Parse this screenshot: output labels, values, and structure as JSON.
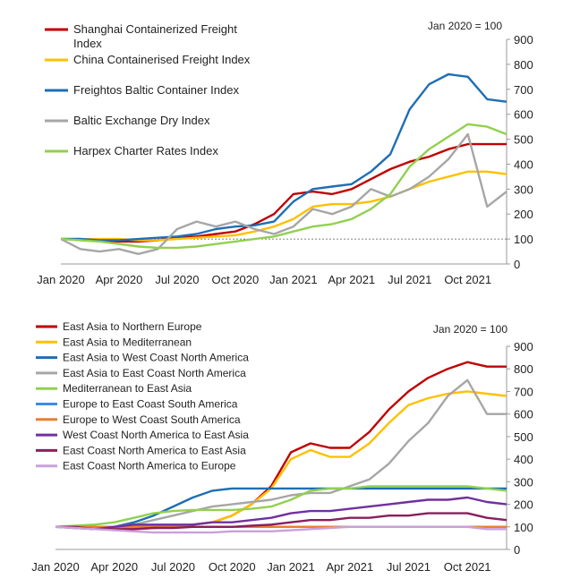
{
  "chart_data": [
    {
      "type": "line",
      "note": "Jan 2020 = 100",
      "x_ticks": [
        "Jan 2020",
        "Apr 2020",
        "Jul 2020",
        "Oct 2020",
        "Jan 2021",
        "Apr 2021",
        "Jul 2021",
        "Oct 2021"
      ],
      "x_range": [
        "2020-01",
        "2021-12"
      ],
      "ylim": [
        0,
        900
      ],
      "y_ticks": [
        0,
        100,
        200,
        300,
        400,
        500,
        600,
        700,
        800,
        900
      ],
      "y_axis_side": "right",
      "reference_line": 100,
      "legend_position": "top-left",
      "x": [
        "2020-01",
        "2020-02",
        "2020-03",
        "2020-04",
        "2020-05",
        "2020-06",
        "2020-07",
        "2020-08",
        "2020-09",
        "2020-10",
        "2020-11",
        "2020-12",
        "2021-01",
        "2021-02",
        "2021-03",
        "2021-04",
        "2021-05",
        "2021-06",
        "2021-07",
        "2021-08",
        "2021-09",
        "2021-10",
        "2021-11",
        "2021-12"
      ],
      "series": [
        {
          "name": "Shanghai Containerized Freight Index",
          "color": "#C00000",
          "values": [
            100,
            100,
            95,
            90,
            90,
            95,
            105,
            110,
            120,
            130,
            160,
            200,
            280,
            290,
            280,
            300,
            340,
            380,
            410,
            430,
            460,
            480,
            480,
            480
          ]
        },
        {
          "name": "China Containerised Freight Index",
          "color": "#FFC000",
          "values": [
            100,
            100,
            100,
            100,
            95,
            95,
            100,
            105,
            110,
            115,
            130,
            150,
            180,
            230,
            240,
            240,
            250,
            270,
            300,
            330,
            350,
            370,
            370,
            360
          ]
        },
        {
          "name": "Freightos Baltic Container Index",
          "color": "#1F6EB4",
          "values": [
            100,
            100,
            95,
            95,
            100,
            105,
            110,
            120,
            140,
            150,
            155,
            170,
            250,
            300,
            310,
            320,
            370,
            440,
            620,
            720,
            760,
            750,
            660,
            650
          ]
        },
        {
          "name": "Baltic Exchange Dry Index",
          "color": "#A6A6A6",
          "values": [
            100,
            60,
            50,
            60,
            40,
            60,
            140,
            170,
            150,
            170,
            140,
            120,
            150,
            220,
            200,
            230,
            300,
            270,
            300,
            350,
            420,
            520,
            230,
            290
          ]
        },
        {
          "name": "Harpex Charter Rates Index",
          "color": "#92D050",
          "values": [
            100,
            95,
            90,
            80,
            70,
            65,
            65,
            70,
            80,
            90,
            100,
            110,
            130,
            150,
            160,
            180,
            220,
            280,
            390,
            460,
            510,
            560,
            550,
            520
          ]
        }
      ]
    },
    {
      "type": "line",
      "note": "Jan 2020 = 100",
      "x_ticks": [
        "Jan 2020",
        "Apr 2020",
        "Jul 2020",
        "Oct 2020",
        "Jan 2021",
        "Apr 2021",
        "Jul 2021",
        "Oct 2021"
      ],
      "x_range": [
        "2020-01",
        "2021-12"
      ],
      "ylim": [
        0,
        900
      ],
      "y_ticks": [
        0,
        100,
        200,
        300,
        400,
        500,
        600,
        700,
        800,
        900
      ],
      "y_axis_side": "right",
      "reference_line": 100,
      "legend_position": "top-left",
      "x": [
        "2020-01",
        "2020-02",
        "2020-03",
        "2020-04",
        "2020-05",
        "2020-06",
        "2020-07",
        "2020-08",
        "2020-09",
        "2020-10",
        "2020-11",
        "2020-12",
        "2021-01",
        "2021-02",
        "2021-03",
        "2021-04",
        "2021-05",
        "2021-06",
        "2021-07",
        "2021-08",
        "2021-09",
        "2021-10",
        "2021-11",
        "2021-12"
      ],
      "series": [
        {
          "name": "East Asia to Northern Europe",
          "color": "#C00000",
          "values": [
            100,
            100,
            95,
            90,
            90,
            95,
            100,
            110,
            120,
            150,
            200,
            280,
            430,
            470,
            450,
            450,
            520,
            620,
            700,
            760,
            800,
            830,
            810,
            810
          ]
        },
        {
          "name": "East Asia to Mediterranean",
          "color": "#FFC000",
          "values": [
            100,
            100,
            95,
            90,
            90,
            95,
            100,
            110,
            120,
            150,
            200,
            270,
            400,
            440,
            410,
            410,
            470,
            560,
            640,
            670,
            690,
            700,
            690,
            680
          ]
        },
        {
          "name": "East Asia to West Coast North America",
          "color": "#1F6EB4",
          "values": [
            100,
            100,
            95,
            100,
            120,
            150,
            190,
            230,
            260,
            270,
            270,
            270,
            270,
            270,
            270,
            270,
            270,
            270,
            270,
            270,
            270,
            270,
            270,
            270
          ]
        },
        {
          "name": "East Asia to East Coast North America",
          "color": "#A6A6A6",
          "values": [
            100,
            100,
            95,
            100,
            110,
            130,
            150,
            170,
            190,
            200,
            210,
            220,
            240,
            250,
            250,
            280,
            310,
            380,
            480,
            560,
            680,
            750,
            600,
            600
          ]
        },
        {
          "name": "Mediterranean to East Asia",
          "color": "#92D050",
          "values": [
            100,
            105,
            110,
            120,
            140,
            160,
            170,
            175,
            175,
            175,
            180,
            190,
            220,
            260,
            270,
            270,
            280,
            280,
            280,
            280,
            280,
            280,
            270,
            260
          ]
        },
        {
          "name": "Europe to East Coast South America",
          "color": "#3C8CE7",
          "values": [
            100,
            100,
            100,
            100,
            100,
            100,
            100,
            100,
            100,
            100,
            100,
            100,
            100,
            100,
            100,
            100,
            100,
            100,
            100,
            100,
            100,
            100,
            100,
            100
          ]
        },
        {
          "name": "Europe to West Coast South America",
          "color": "#ED7D31",
          "values": [
            100,
            100,
            100,
            100,
            100,
            100,
            100,
            100,
            100,
            100,
            100,
            100,
            100,
            100,
            100,
            100,
            100,
            100,
            100,
            100,
            100,
            100,
            100,
            100
          ]
        },
        {
          "name": "West Coast North America to East Asia",
          "color": "#7030A0",
          "values": [
            100,
            95,
            90,
            100,
            110,
            110,
            110,
            110,
            120,
            120,
            130,
            140,
            160,
            170,
            170,
            180,
            190,
            200,
            210,
            220,
            220,
            230,
            210,
            200
          ]
        },
        {
          "name": "East Coast North America to East Asia",
          "color": "#8B1E5A",
          "values": [
            100,
            100,
            90,
            90,
            90,
            95,
            95,
            100,
            100,
            100,
            105,
            110,
            120,
            130,
            130,
            140,
            140,
            150,
            150,
            160,
            160,
            160,
            140,
            130
          ]
        },
        {
          "name": "East Coast North America to Europe",
          "color": "#C9A0DC",
          "values": [
            100,
            95,
            90,
            85,
            80,
            75,
            75,
            75,
            75,
            80,
            80,
            80,
            85,
            90,
            95,
            100,
            100,
            100,
            100,
            100,
            100,
            100,
            90,
            90
          ]
        }
      ]
    }
  ]
}
